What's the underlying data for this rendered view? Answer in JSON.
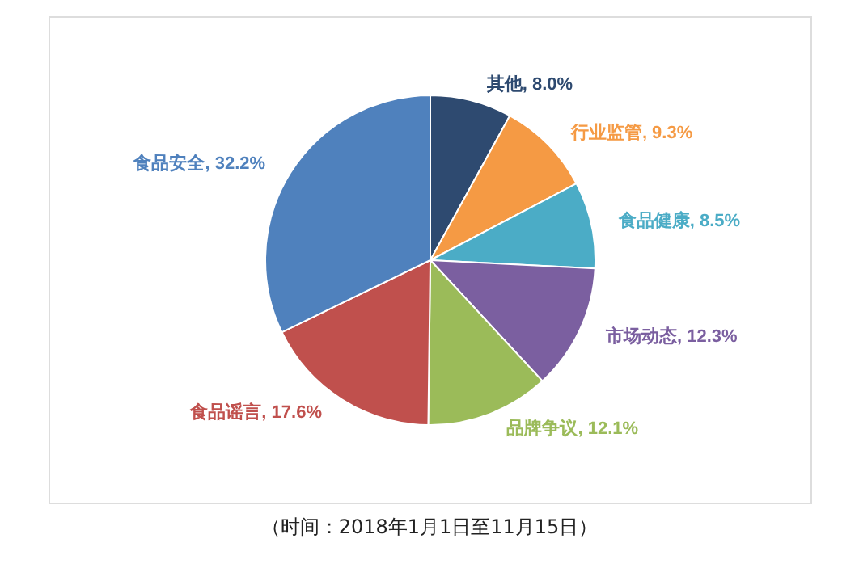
{
  "chart_data": {
    "type": "pie",
    "categories": [
      "其他",
      "行业监管",
      "食品健康",
      "市场动态",
      "品牌争议",
      "食品谣言",
      "食品安全"
    ],
    "values": [
      8.0,
      9.3,
      8.5,
      12.3,
      12.1,
      17.6,
      32.2
    ],
    "value_labels": [
      "8.0%",
      "9.3%",
      "8.5%",
      "12.3%",
      "12.1%",
      "17.6%",
      "32.2%"
    ],
    "colors": [
      "#2e4a70",
      "#f59a44",
      "#4bacc6",
      "#7b5fa0",
      "#9bbb59",
      "#c0504d",
      "#4f81bd"
    ],
    "annotations": [
      "（时间：2018年1月1日至11月15日）"
    ],
    "legend": false
  }
}
